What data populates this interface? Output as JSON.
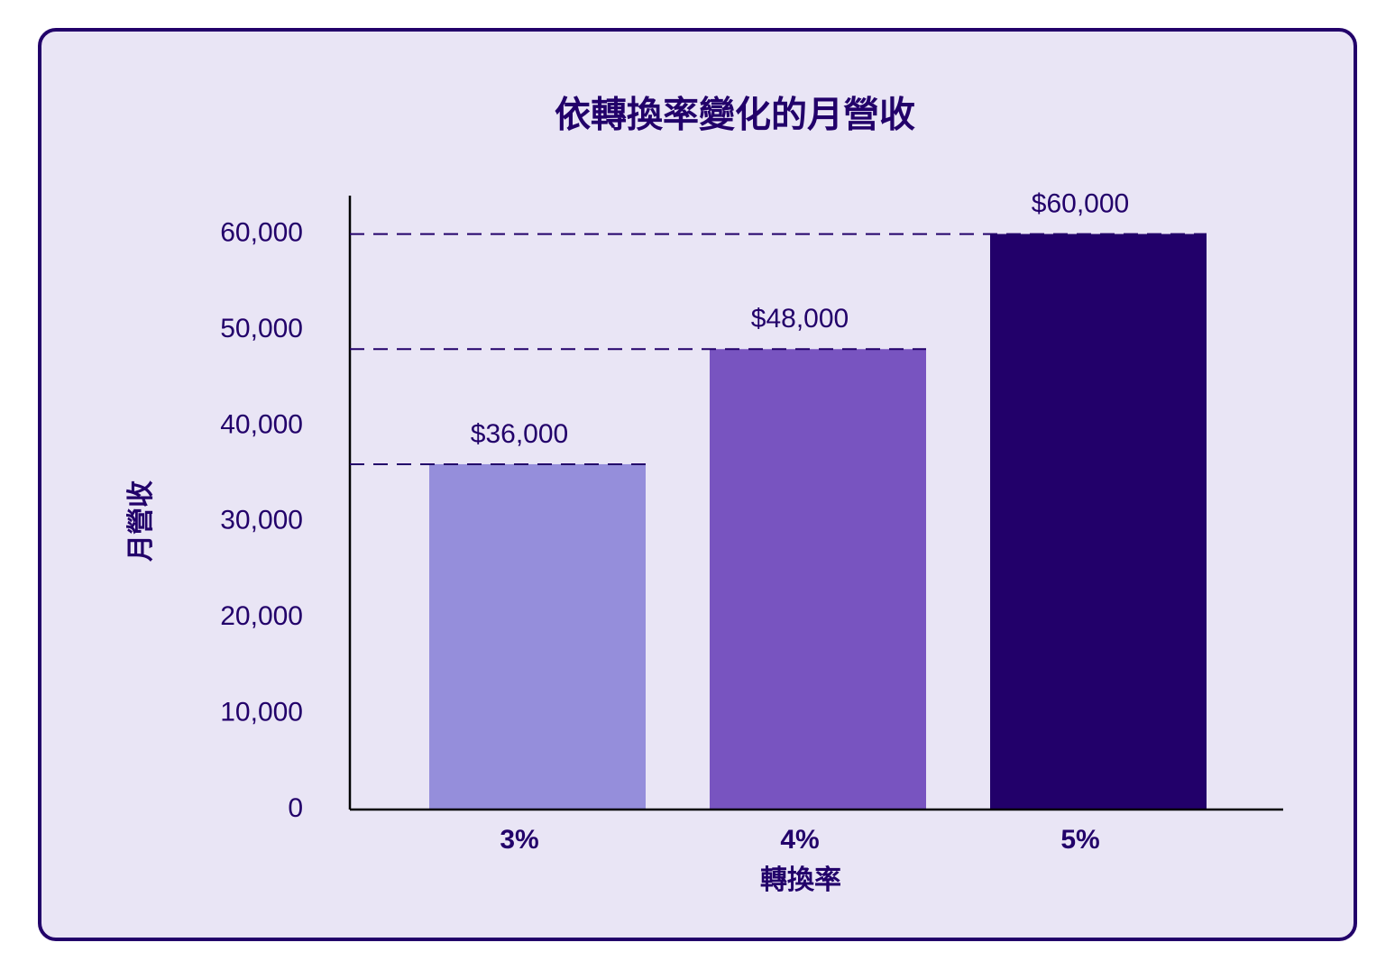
{
  "chart_data": {
    "type": "bar",
    "title": "依轉換率變化的月營收",
    "categories": [
      "3%",
      "4%",
      "5%"
    ],
    "values": [
      36000,
      48000,
      60000
    ],
    "value_labels": [
      "$36,000",
      "$48,000",
      "$60,000"
    ],
    "colors": [
      "#958edb",
      "#7854c0",
      "#22006a"
    ],
    "x_label": "轉換率",
    "y_label": "月營收",
    "ylim": [
      0,
      64000
    ],
    "yticks": [
      0,
      {
        "value": 10000,
        "label": "10,000"
      },
      {
        "value": 20000,
        "label": "20,000"
      },
      {
        "value": 30000,
        "label": "30,000"
      },
      {
        "value": 40000,
        "label": "40,000"
      },
      {
        "value": 50000,
        "label": "50,000"
      },
      {
        "value": 60000,
        "label": "60,000"
      }
    ],
    "guide_lines": true
  }
}
